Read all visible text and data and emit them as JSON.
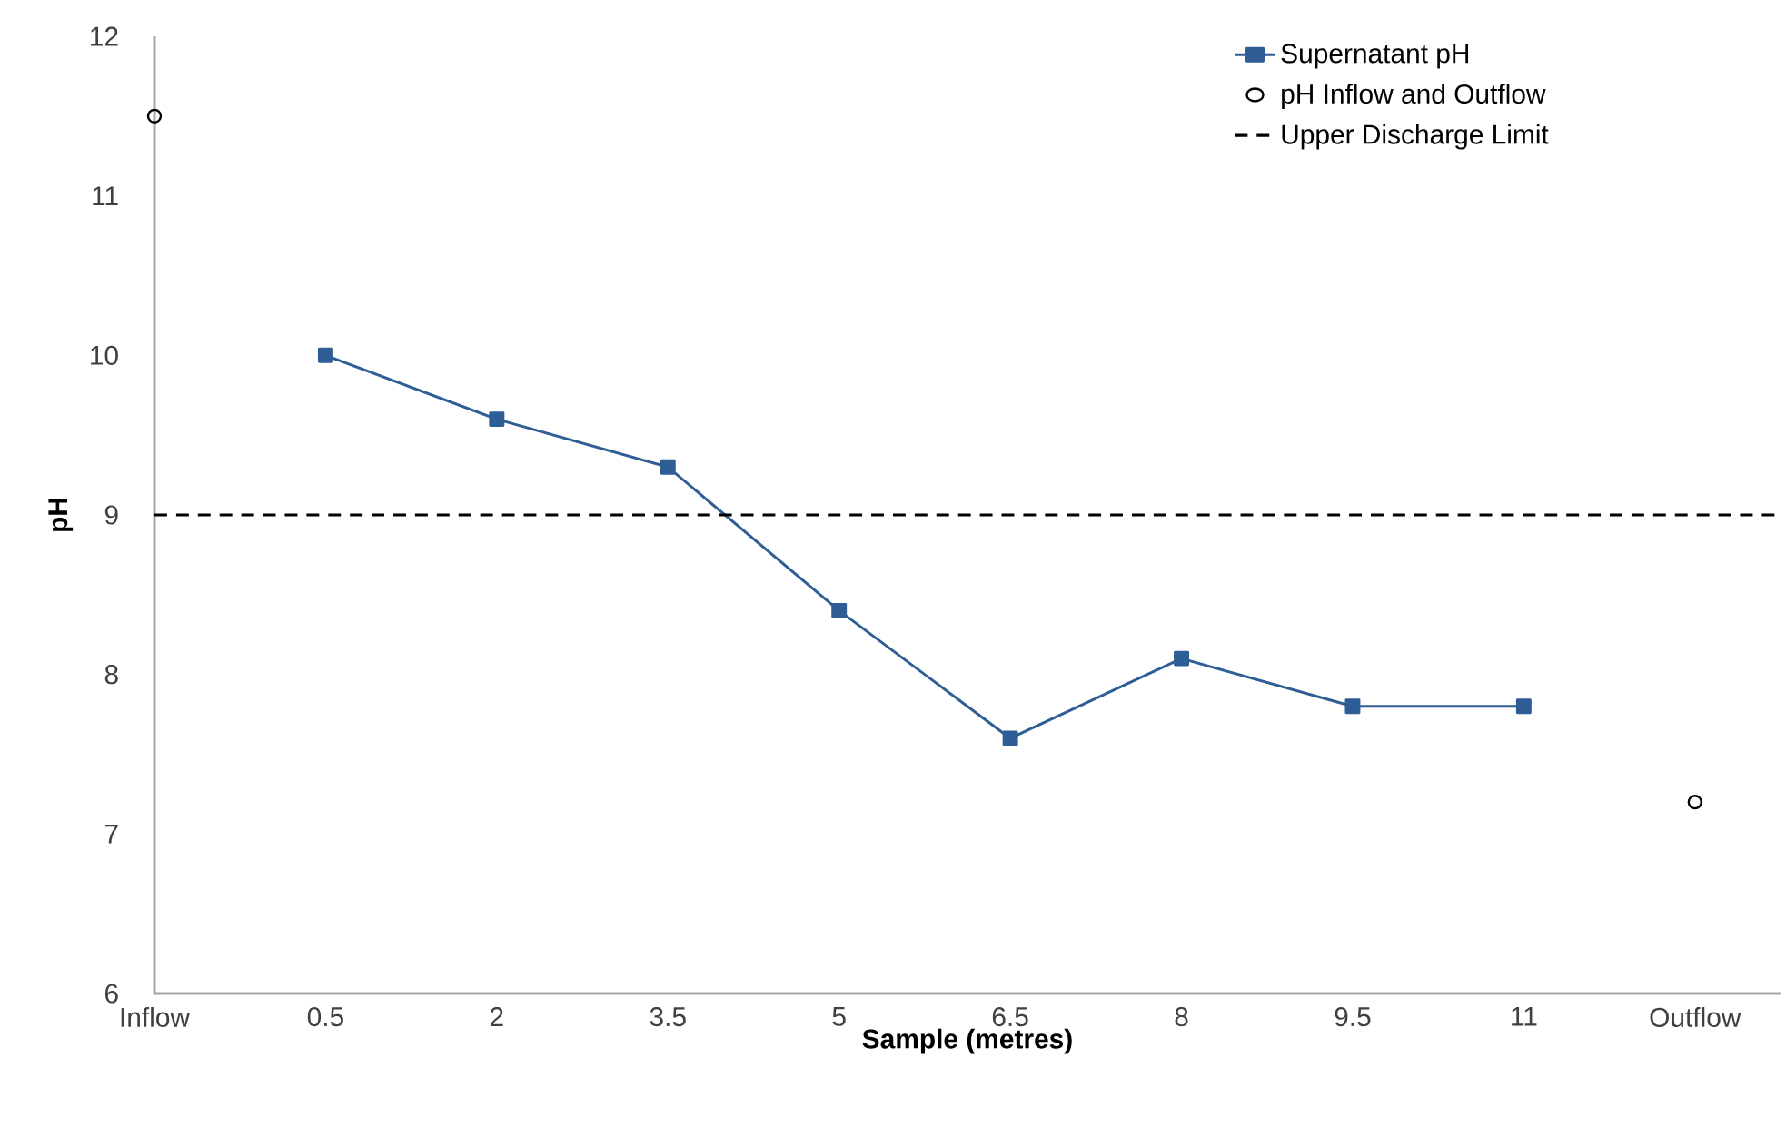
{
  "chart_data": {
    "type": "line",
    "categories": [
      "Inflow",
      "0.5",
      "2",
      "3.5",
      "5",
      "6.5",
      "8",
      "9.5",
      "11",
      "Outflow"
    ],
    "series": [
      {
        "name": "Supernatant pH",
        "marker": "square",
        "color": "#2f5d95",
        "values": [
          null,
          10.0,
          9.6,
          9.3,
          8.4,
          7.6,
          8.1,
          7.8,
          7.8,
          null
        ]
      },
      {
        "name": "pH Inflow and Outflow",
        "type": "scatter",
        "marker": "circle",
        "color": "#000000",
        "values": [
          11.5,
          null,
          null,
          null,
          null,
          null,
          null,
          null,
          null,
          7.2
        ]
      }
    ],
    "ref_lines": [
      {
        "axis": "y",
        "value": 9,
        "label": "Upper Discharge Limit",
        "color": "#000000",
        "line_style": "dashed"
      }
    ],
    "xlabel": "Sample (metres)",
    "ylabel": "pH",
    "ylim": [
      6,
      12
    ],
    "yticks": [
      6,
      7,
      8,
      9,
      10,
      11,
      12
    ],
    "legend": "top right"
  }
}
